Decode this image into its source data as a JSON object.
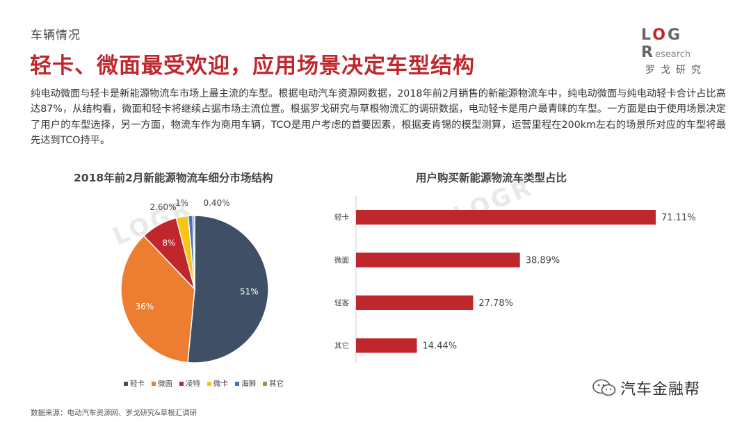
{
  "header": {
    "section_label": "车辆情况",
    "headline": "轻卡、微面最受欢迎，应用场景决定车型结构"
  },
  "logo": {
    "mark_prefix": "L",
    "mark_o": "O",
    "mark_g": "G",
    "mark_r": "R",
    "mark_small": "esearch",
    "sub": "罗戈研究"
  },
  "body_text": "纯电动微面与轻卡是新能源物流车市场上最主流的车型。根据电动汽车资源网数据，2018年前2月销售的新能源物流车中，纯电动微面与纯电动轻卡合计占比高达87%，从结构看，微面和轻卡将继续占据市场主流位置。根据罗戈研究与草根物流汇的调研数据，电动轻卡是用户最青睐的车型。一方面是由于使用场景决定了用户的车型选择，另一方面，物流车作为商用车辆，TCO是用户考虑的首要因素，根据麦肯锡的模型测算，运营里程在200km左右的场景所对应的车型将最先达到TCO持平。",
  "watermark": "LOGR",
  "chart_data": [
    {
      "type": "pie",
      "title": "2018年前2月新能源物流车细分市场结构",
      "categories": [
        "轻卡",
        "微面",
        "凌特",
        "微卡",
        "海狮",
        "其它"
      ],
      "values": [
        51,
        36,
        8,
        2.6,
        1,
        0.4
      ],
      "labels": [
        "51%",
        "36%",
        "8%",
        "2.60%",
        "1%",
        "0.40%"
      ],
      "colors": [
        "#3e4f66",
        "#ed7d31",
        "#c0272d",
        "#f5c518",
        "#4472c4",
        "#70ad47"
      ],
      "legend": "bottom"
    },
    {
      "type": "bar",
      "orientation": "horizontal",
      "title": "用户购买新能源物流车类型占比",
      "categories": [
        "轻卡",
        "微面",
        "轻客",
        "其它"
      ],
      "values": [
        71.11,
        38.89,
        27.78,
        14.44
      ],
      "labels": [
        "71.11%",
        "38.89%",
        "27.78%",
        "14.44%"
      ],
      "color": "#c0272d",
      "xlim": [
        0,
        71.11
      ]
    }
  ],
  "footer": {
    "source": "数据来源：电动汽车资源网、罗戈研究&草根汇调研"
  },
  "wechat": {
    "name": "汽车金融帮"
  }
}
